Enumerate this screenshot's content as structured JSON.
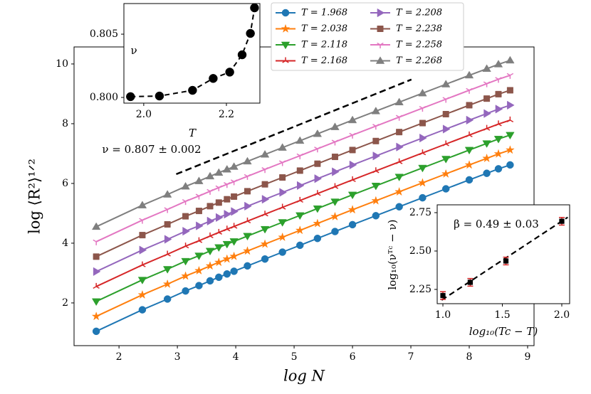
{
  "chart_data": [
    {
      "type": "line",
      "xlabel": "log N",
      "ylabel": "log ⟨R²⟩¹ᐟ²",
      "xlim": [
        1.23,
        9.11
      ],
      "ylim": [
        0.57,
        10.57
      ],
      "xticks": [
        2,
        3,
        4,
        5,
        6,
        7,
        8,
        9
      ],
      "yticks": [
        2,
        4,
        6,
        8,
        10
      ],
      "legend": "top",
      "x": [
        1.61,
        2.4,
        2.83,
        3.14,
        3.37,
        3.56,
        3.71,
        3.85,
        3.97,
        4.2,
        4.5,
        4.8,
        5.1,
        5.4,
        5.7,
        6.0,
        6.4,
        6.8,
        7.2,
        7.6,
        8.0,
        8.3,
        8.5,
        8.7
      ],
      "series": [
        {
          "name": "T = 1.968",
          "color": "#1f77b4",
          "marker": "o",
          "values": [
            1.05,
            1.77,
            2.13,
            2.4,
            2.58,
            2.74,
            2.86,
            2.97,
            3.06,
            3.24,
            3.47,
            3.7,
            3.93,
            4.16,
            4.39,
            4.62,
            4.92,
            5.22,
            5.52,
            5.82,
            6.12,
            6.34,
            6.49,
            6.62
          ]
        },
        {
          "name": "T = 2.038",
          "color": "#ff7f0e",
          "marker": "*",
          "values": [
            1.55,
            2.27,
            2.63,
            2.9,
            3.08,
            3.24,
            3.36,
            3.47,
            3.56,
            3.74,
            3.97,
            4.2,
            4.43,
            4.66,
            4.89,
            5.12,
            5.42,
            5.72,
            6.02,
            6.32,
            6.62,
            6.84,
            6.99,
            7.12
          ]
        },
        {
          "name": "T = 2.118",
          "color": "#2ca02c",
          "marker": "v",
          "values": [
            2.05,
            2.77,
            3.13,
            3.4,
            3.58,
            3.74,
            3.86,
            3.97,
            4.06,
            4.24,
            4.47,
            4.7,
            4.93,
            5.16,
            5.39,
            5.62,
            5.92,
            6.22,
            6.52,
            6.82,
            7.12,
            7.34,
            7.49,
            7.62
          ]
        },
        {
          "name": "T = 2.168",
          "color": "#d62728",
          "marker": "2",
          "values": [
            2.55,
            3.27,
            3.63,
            3.9,
            4.08,
            4.24,
            4.36,
            4.47,
            4.56,
            4.74,
            4.97,
            5.2,
            5.43,
            5.66,
            5.89,
            6.12,
            6.42,
            6.72,
            7.02,
            7.32,
            7.62,
            7.84,
            7.99,
            8.12
          ]
        },
        {
          "name": "T = 2.208",
          "color": "#9467bd",
          "marker": ">",
          "values": [
            3.05,
            3.77,
            4.13,
            4.4,
            4.58,
            4.74,
            4.86,
            4.97,
            5.06,
            5.24,
            5.47,
            5.7,
            5.93,
            6.16,
            6.39,
            6.62,
            6.92,
            7.22,
            7.52,
            7.82,
            8.12,
            8.34,
            8.49,
            8.62
          ]
        },
        {
          "name": "T = 2.238",
          "color": "#8c564b",
          "marker": "s",
          "values": [
            3.55,
            4.27,
            4.63,
            4.9,
            5.08,
            5.24,
            5.36,
            5.47,
            5.56,
            5.74,
            5.97,
            6.2,
            6.43,
            6.66,
            6.89,
            7.12,
            7.42,
            7.72,
            8.02,
            8.32,
            8.62,
            8.84,
            8.99,
            9.12
          ]
        },
        {
          "name": "T = 2.258",
          "color": "#e377c2",
          "marker": "1",
          "values": [
            4.05,
            4.77,
            5.13,
            5.4,
            5.58,
            5.74,
            5.86,
            5.97,
            6.06,
            6.24,
            6.47,
            6.7,
            6.93,
            7.16,
            7.39,
            7.62,
            7.92,
            8.22,
            8.52,
            8.82,
            9.12,
            9.34,
            9.49,
            9.62
          ]
        },
        {
          "name": "T = 2.268",
          "color": "#7f7f7f",
          "marker": "^",
          "values": [
            4.55,
            5.27,
            5.63,
            5.9,
            6.08,
            6.24,
            6.36,
            6.47,
            6.56,
            6.74,
            6.97,
            7.2,
            7.43,
            7.66,
            7.89,
            8.12,
            8.42,
            8.72,
            9.02,
            9.32,
            9.62,
            9.84,
            9.99,
            10.12
          ]
        }
      ],
      "reference_line": {
        "x": [
          2.98,
          7.01
        ],
        "y": [
          6.31,
          9.48
        ],
        "color": "#000000"
      },
      "annotation": "ν = 0.807 ± 0.002"
    },
    {
      "type": "line",
      "xlabel": "T",
      "ylabel": "ν",
      "xlim": [
        1.952,
        2.281
      ],
      "ylim": [
        0.79955,
        0.80742
      ],
      "xticks": [
        {
          "value": 2,
          "label": "2.0"
        },
        {
          "value": 2.2,
          "label": "2.2"
        }
      ],
      "yticks": [
        {
          "value": 0.8,
          "label": "0.800"
        },
        {
          "value": 0.805,
          "label": "0.805"
        }
      ],
      "x": [
        1.968,
        2.038,
        2.118,
        2.168,
        2.208,
        2.238,
        2.258,
        2.268
      ],
      "values": [
        0.80006,
        0.80011,
        0.80056,
        0.8015,
        0.802,
        0.80337,
        0.80506,
        0.80708
      ],
      "color": "#000000",
      "marker": "o",
      "linestyle": "dashed"
    },
    {
      "type": "errorbar",
      "xlabel": "log₁₀(Tc − T)",
      "ylabel": "log₁₀(νᵀᶜ − ν)",
      "xlim": [
        0.952,
        2.066
      ],
      "ylim": [
        2.157,
        2.801
      ],
      "xticks": [
        {
          "value": 1,
          "label": "1.0"
        },
        1.5,
        {
          "value": 2,
          "label": "2.0"
        }
      ],
      "yticks": [
        2.25,
        {
          "value": 2.5,
          "label": "2.50"
        },
        2.75
      ],
      "x": [
        1.0,
        1.23,
        1.53,
        2.0
      ],
      "values": [
        2.21,
        2.296,
        2.435,
        2.694
      ],
      "errors": [
        0.025,
        0.025,
        0.025,
        0.025
      ],
      "color": "#000000",
      "ecolor": "#d62728",
      "marker": "s",
      "fit": {
        "x": [
          0.99,
          2.05
        ],
        "y": [
          2.18,
          2.72
        ]
      },
      "annotation": "β = 0.49 ± 0.03"
    }
  ]
}
